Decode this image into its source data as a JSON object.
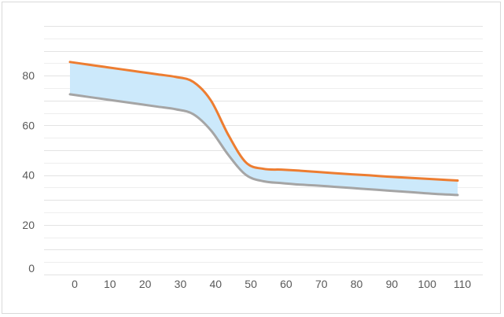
{
  "chart_data": {
    "type": "area",
    "title": "",
    "xlabel": "",
    "ylabel": "",
    "x": [
      0,
      5,
      10,
      15,
      20,
      25,
      30,
      35,
      40,
      45,
      50,
      55,
      60,
      65,
      70,
      75,
      80,
      85,
      90,
      95,
      100,
      105,
      110
    ],
    "x_ticks": [
      "0",
      "10",
      "20",
      "30",
      "40",
      "50",
      "60",
      "70",
      "80",
      "90",
      "100",
      "110"
    ],
    "y_ticks": [
      "0",
      "20",
      "40",
      "60",
      "80"
    ],
    "ylim": [
      0,
      100
    ],
    "grid": "horizontal",
    "legend": "none",
    "series": [
      {
        "color": "#ed7d31",
        "values": [
          85.5,
          84.5,
          83.5,
          82.5,
          81.5,
          80.5,
          79.5,
          77.5,
          70,
          56,
          45,
          42.5,
          42.2,
          41.8,
          41.3,
          40.8,
          40.3,
          39.9,
          39.4,
          39,
          38.6,
          38.2,
          37.8
        ]
      },
      {
        "color": "#a5a5a5",
        "values": [
          72.5,
          71.5,
          70.5,
          69.5,
          68.5,
          67.5,
          66.5,
          64.5,
          58,
          48,
          40,
          37.5,
          36.8,
          36.2,
          35.8,
          35.3,
          34.8,
          34.3,
          33.8,
          33.3,
          32.8,
          32.3,
          32
        ]
      }
    ],
    "band_color": "#cce9fb"
  }
}
